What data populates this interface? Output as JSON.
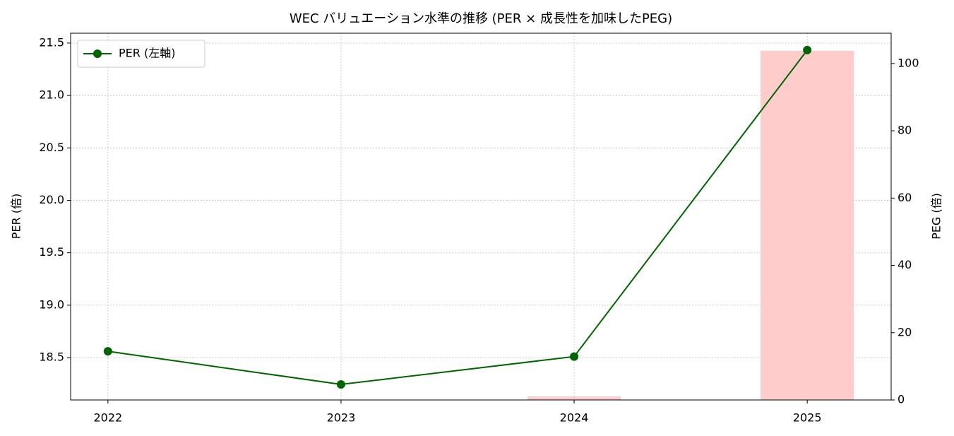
{
  "chart_data": {
    "type": "line",
    "title": "WEC バリュエーション水準の推移 (PER × 成長性を加味したPEG)",
    "x": [
      2022,
      2023,
      2024,
      2025
    ],
    "xlim": [
      2021.84,
      2025.36
    ],
    "xticks": [
      2022,
      2023,
      2024,
      2025
    ],
    "ylabel": "PER (倍)",
    "y2label": "PEG (倍)",
    "ylim": [
      18.096,
      21.594
    ],
    "yticks": [
      18.5,
      {
        "value": 19.0,
        "label": "19.0"
      },
      19.5,
      {
        "value": 20.0,
        "label": "20.0"
      },
      20.5,
      {
        "value": 21.0,
        "label": "21.0"
      },
      21.5
    ],
    "y2lim": [
      0,
      109.0
    ],
    "y2ticks": [
      0,
      20,
      40,
      60,
      80,
      100
    ],
    "grid": true,
    "legend": "upper left",
    "series": [
      {
        "type": "bar",
        "axis": "y2",
        "color": "#ffcccc",
        "values": [
          null,
          null,
          1.05,
          103.8
        ]
      },
      {
        "type": "line",
        "name": "PER (左軸)",
        "color": "#006400",
        "values": [
          18.56,
          18.244,
          18.51,
          21.433
        ]
      }
    ]
  }
}
